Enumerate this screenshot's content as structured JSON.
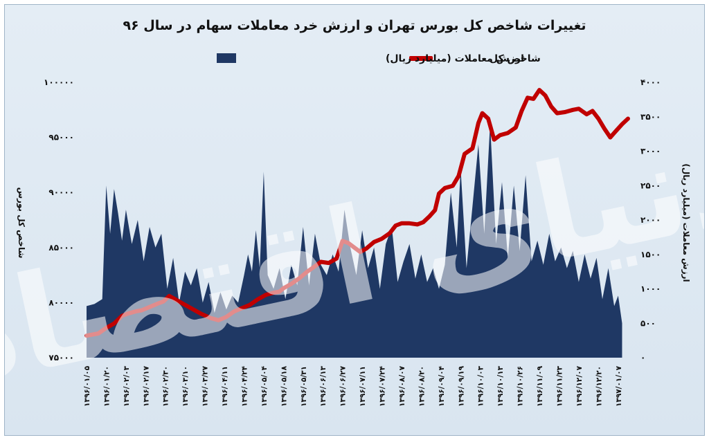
{
  "chart_data": {
    "type": "area+line",
    "title": "تغییرات شاخص کل بورس تهران و ارزش خرد معاملات سهام در سال ۹۶",
    "legend": {
      "position": "top",
      "items": [
        {
          "key": "index",
          "label": "شاخص کل",
          "color": "#c00000",
          "kind": "line"
        },
        {
          "key": "value",
          "label": "ارزش معاملات (میلیارد ریال)",
          "color": "#1f3864",
          "kind": "area"
        }
      ]
    },
    "y_left": {
      "label": "شاخص کل بورس",
      "min": 75000,
      "max": 100000,
      "ticks": [
        75000,
        80000,
        85000,
        90000,
        95000,
        100000
      ],
      "tick_labels": [
        "۷۵۰۰۰",
        "۸۰۰۰۰",
        "۸۵۰۰۰",
        "۹۰۰۰۰",
        "۹۵۰۰۰",
        "۱۰۰۰۰۰"
      ]
    },
    "y_right": {
      "label": "ارزش معاملات (میلیارد ریال)",
      "min": 0,
      "max": 4000,
      "ticks": [
        0,
        500,
        1000,
        1500,
        2000,
        2500,
        3000,
        3500,
        4000
      ],
      "tick_labels": [
        "۰",
        "۵۰۰",
        "۱۰۰۰",
        "۱۵۰۰",
        "۲۰۰۰",
        "۲۵۰۰",
        "۳۰۰۰",
        "۳۵۰۰",
        "۴۰۰۰"
      ]
    },
    "x_tick_labels": [
      "۱۳۹۶/۰۱/۰۵",
      "۱۳۹۶/۰۱/۲۰",
      "۱۳۹۶/۰۲/۰۳",
      "۱۳۹۶/۰۲/۱۷",
      "۱۳۹۶/۰۲/۳۰",
      "۱۳۹۶/۰۳/۱۰",
      "۱۳۹۶/۰۳/۲۷",
      "۱۳۹۶/۰۴/۱۱",
      "۱۳۹۶/۰۴/۲۴",
      "۱۳۹۶/۰۵/۰۴",
      "۱۳۹۶/۰۵/۱۸",
      "۱۳۹۶/۰۵/۳۱",
      "۱۳۹۶/۰۶/۱۳",
      "۱۳۹۶/۰۶/۲۷",
      "۱۳۹۶/۰۷/۱۱",
      "۱۳۹۶/۰۷/۲۴",
      "۱۳۹۶/۰۸/۰۷",
      "۱۳۹۶/۰۸/۲۰",
      "۱۳۹۶/۰۹/۰۴",
      "۱۳۹۶/۰۹/۱۹",
      "۱۳۹۶/۱۰/۰۳",
      "۱۳۹۶/۱۰/۱۳",
      "۱۳۹۶/۱۰/۲۶",
      "۱۳۹۶/۱۱/۰۹",
      "۱۳۹۶/۱۱/۲۳",
      "۱۳۹۶/۱۲/۰۷",
      "۱۳۹۶/۱۲/۲۰",
      "۱۳۹۷/۰۱/۰۷"
    ],
    "series": [
      {
        "key": "value",
        "axis": "right",
        "points": [
          [
            0,
            750
          ],
          [
            0.4,
            780
          ],
          [
            0.8,
            850
          ],
          [
            1.0,
            2500
          ],
          [
            1.2,
            1800
          ],
          [
            1.4,
            2450
          ],
          [
            1.6,
            2100
          ],
          [
            1.8,
            1700
          ],
          [
            2.0,
            2150
          ],
          [
            2.3,
            1650
          ],
          [
            2.6,
            2000
          ],
          [
            2.9,
            1400
          ],
          [
            3.2,
            1900
          ],
          [
            3.5,
            1600
          ],
          [
            3.8,
            1800
          ],
          [
            4.1,
            1000
          ],
          [
            4.4,
            1450
          ],
          [
            4.7,
            800
          ],
          [
            5.0,
            1250
          ],
          [
            5.3,
            1050
          ],
          [
            5.6,
            1300
          ],
          [
            5.9,
            800
          ],
          [
            6.2,
            1100
          ],
          [
            6.5,
            650
          ],
          [
            6.8,
            950
          ],
          [
            7.1,
            700
          ],
          [
            7.4,
            900
          ],
          [
            7.7,
            800
          ],
          [
            8.0,
            1200
          ],
          [
            8.2,
            1500
          ],
          [
            8.4,
            1250
          ],
          [
            8.6,
            1850
          ],
          [
            8.8,
            1300
          ],
          [
            9.0,
            2700
          ],
          [
            9.2,
            1200
          ],
          [
            9.5,
            1000
          ],
          [
            9.8,
            1300
          ],
          [
            10.1,
            850
          ],
          [
            10.4,
            1350
          ],
          [
            10.7,
            1050
          ],
          [
            11.0,
            1900
          ],
          [
            11.3,
            1050
          ],
          [
            11.6,
            1800
          ],
          [
            11.9,
            1350
          ],
          [
            12.2,
            1200
          ],
          [
            12.5,
            1500
          ],
          [
            12.8,
            1250
          ],
          [
            13.1,
            2150
          ],
          [
            13.4,
            1600
          ],
          [
            13.7,
            1200
          ],
          [
            14.0,
            1850
          ],
          [
            14.3,
            1300
          ],
          [
            14.6,
            1600
          ],
          [
            14.9,
            1000
          ],
          [
            15.2,
            1650
          ],
          [
            15.5,
            1900
          ],
          [
            15.8,
            1100
          ],
          [
            16.1,
            1400
          ],
          [
            16.4,
            1650
          ],
          [
            16.7,
            1150
          ],
          [
            17.0,
            1500
          ],
          [
            17.3,
            1100
          ],
          [
            17.6,
            1300
          ],
          [
            17.9,
            1000
          ],
          [
            18.2,
            1350
          ],
          [
            18.5,
            2400
          ],
          [
            18.8,
            1600
          ],
          [
            19.0,
            2750
          ],
          [
            19.3,
            1300
          ],
          [
            19.6,
            2200
          ],
          [
            19.9,
            3100
          ],
          [
            20.2,
            1800
          ],
          [
            20.5,
            3400
          ],
          [
            20.8,
            1650
          ],
          [
            21.1,
            2550
          ],
          [
            21.4,
            1450
          ],
          [
            21.7,
            2500
          ],
          [
            22.0,
            1550
          ],
          [
            22.3,
            2650
          ],
          [
            22.6,
            1400
          ],
          [
            22.9,
            1700
          ],
          [
            23.2,
            1350
          ],
          [
            23.5,
            1800
          ],
          [
            23.8,
            1400
          ],
          [
            24.1,
            1600
          ],
          [
            24.4,
            1300
          ],
          [
            24.7,
            1550
          ],
          [
            25.0,
            1100
          ],
          [
            25.3,
            1500
          ],
          [
            25.6,
            1150
          ],
          [
            25.9,
            1450
          ],
          [
            26.2,
            850
          ],
          [
            26.5,
            1300
          ],
          [
            26.8,
            750
          ],
          [
            27.0,
            900
          ],
          [
            27.2,
            500
          ]
        ]
      },
      {
        "key": "index",
        "axis": "left",
        "points": [
          [
            0,
            77000
          ],
          [
            0.6,
            77200
          ],
          [
            1.0,
            77700
          ],
          [
            1.4,
            78100
          ],
          [
            1.8,
            78800
          ],
          [
            2.1,
            79000
          ],
          [
            2.5,
            79200
          ],
          [
            2.8,
            79300
          ],
          [
            3.2,
            79600
          ],
          [
            3.6,
            79900
          ],
          [
            3.9,
            80100
          ],
          [
            4.2,
            80600
          ],
          [
            4.6,
            80200
          ],
          [
            5.0,
            79800
          ],
          [
            5.4,
            79400
          ],
          [
            5.8,
            79000
          ],
          [
            6.3,
            78600
          ],
          [
            6.7,
            78400
          ],
          [
            7.1,
            78700
          ],
          [
            7.5,
            79200
          ],
          [
            7.9,
            79500
          ],
          [
            8.3,
            79800
          ],
          [
            8.7,
            80300
          ],
          [
            9.1,
            80700
          ],
          [
            9.5,
            80900
          ],
          [
            9.8,
            81000
          ],
          [
            10.0,
            81300
          ],
          [
            10.4,
            81700
          ],
          [
            10.8,
            82200
          ],
          [
            11.2,
            82800
          ],
          [
            11.6,
            83300
          ],
          [
            11.9,
            83700
          ],
          [
            12.3,
            83600
          ],
          [
            12.7,
            84000
          ],
          [
            13.0,
            85600
          ],
          [
            13.3,
            85400
          ],
          [
            13.6,
            85000
          ],
          [
            13.9,
            84600
          ],
          [
            14.2,
            84900
          ],
          [
            14.6,
            85500
          ],
          [
            15.0,
            85800
          ],
          [
            15.4,
            86300
          ],
          [
            15.7,
            87000
          ],
          [
            16.0,
            87200
          ],
          [
            16.4,
            87200
          ],
          [
            16.8,
            87100
          ],
          [
            17.1,
            87300
          ],
          [
            17.4,
            87800
          ],
          [
            17.7,
            88400
          ],
          [
            17.9,
            89900
          ],
          [
            18.2,
            90400
          ],
          [
            18.6,
            90600
          ],
          [
            18.9,
            91500
          ],
          [
            19.2,
            93500
          ],
          [
            19.6,
            94000
          ],
          [
            19.9,
            96300
          ],
          [
            20.1,
            97200
          ],
          [
            20.4,
            96700
          ],
          [
            20.7,
            94800
          ],
          [
            21.0,
            95200
          ],
          [
            21.4,
            95400
          ],
          [
            21.8,
            95900
          ],
          [
            22.1,
            97400
          ],
          [
            22.4,
            98600
          ],
          [
            22.7,
            98500
          ],
          [
            23.0,
            99300
          ],
          [
            23.3,
            98800
          ],
          [
            23.6,
            97800
          ],
          [
            23.9,
            97200
          ],
          [
            24.3,
            97300
          ],
          [
            24.7,
            97500
          ],
          [
            25.0,
            97600
          ],
          [
            25.4,
            97100
          ],
          [
            25.7,
            97400
          ],
          [
            26.0,
            96700
          ],
          [
            26.3,
            95800
          ],
          [
            26.6,
            95000
          ],
          [
            26.9,
            95600
          ],
          [
            27.2,
            96200
          ],
          [
            27.5,
            96700
          ]
        ]
      }
    ]
  },
  "watermark_text": "دنیای اقتصاد"
}
